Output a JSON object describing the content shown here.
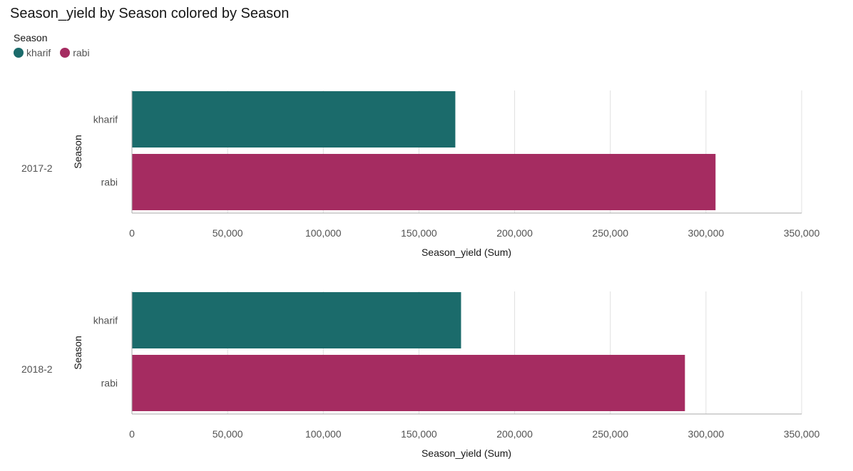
{
  "title": "Season_yield by Season colored by Season",
  "legend": {
    "title": "Season",
    "items": [
      {
        "label": "kharif",
        "color": "#1b6b6b"
      },
      {
        "label": "rabi",
        "color": "#a52c61"
      }
    ]
  },
  "chart_data": [
    {
      "type": "bar",
      "orientation": "horizontal",
      "facet": "2017-2",
      "categories": [
        "kharif",
        "rabi"
      ],
      "values": [
        169000,
        305000
      ],
      "xlabel": "Season_yield (Sum)",
      "ylabel": "Season",
      "xlim": [
        0,
        350000
      ],
      "xticks": [
        "0",
        "50,000",
        "100,000",
        "150,000",
        "200,000",
        "250,000",
        "300,000",
        "350,000"
      ],
      "grid": true
    },
    {
      "type": "bar",
      "orientation": "horizontal",
      "facet": "2018-2",
      "categories": [
        "kharif",
        "rabi"
      ],
      "values": [
        172000,
        289000
      ],
      "xlabel": "Season_yield (Sum)",
      "ylabel": "Season",
      "xlim": [
        0,
        350000
      ],
      "xticks": [
        "0",
        "50,000",
        "100,000",
        "150,000",
        "200,000",
        "250,000",
        "300,000",
        "350,000"
      ],
      "grid": true
    }
  ]
}
